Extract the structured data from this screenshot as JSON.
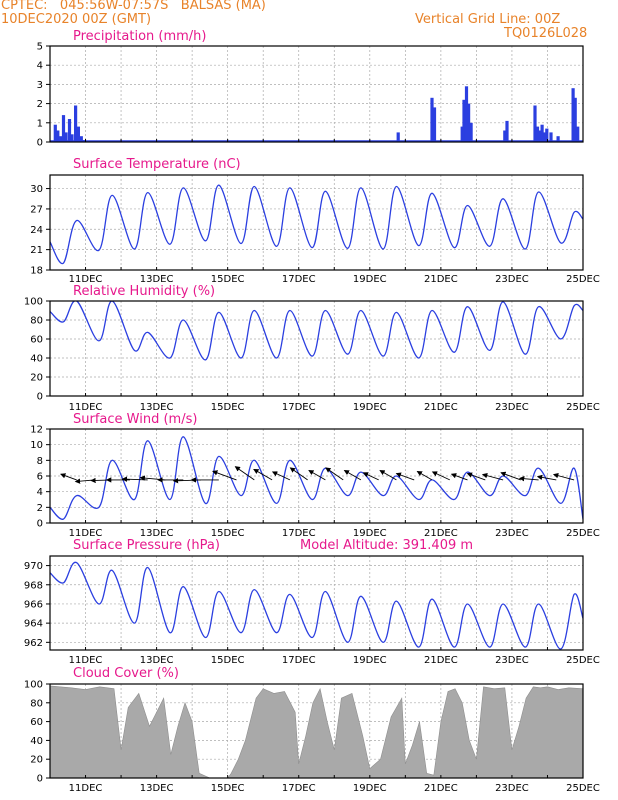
{
  "header": {
    "line1_left": "CPTEC:   045:56W-07:57S   BALSAS (MA)",
    "line2_left": "10DEC2020 00Z (GMT)",
    "line1_right": "Vertical Grid Line: 00Z",
    "line2_right": "TQ0126L028"
  },
  "colors": {
    "header": "#e8832a",
    "panel_title": "#e6198c",
    "series": "#2b3fe0",
    "cloud": "#a9a9a9",
    "grid": "#aaaaaa"
  },
  "x_axis": {
    "start": "10DEC2020 00Z",
    "end": "25DEC2020 00Z",
    "grid": "daily 00Z vertical lines",
    "tick_labels": [
      "11DEC",
      "13DEC",
      "15DEC",
      "17DEC",
      "19DEC",
      "21DEC",
      "23DEC",
      "25DEC"
    ],
    "tick_days": [
      11,
      13,
      15,
      17,
      19,
      21,
      23,
      25
    ]
  },
  "chart_data": [
    {
      "type": "bar",
      "title": "Precipitation (mm/h)",
      "ylim": [
        0,
        5
      ],
      "yticks": [
        "0",
        "1",
        "2",
        "3",
        "4",
        "5"
      ],
      "color": "#2b3fe0",
      "events": [
        {
          "day": 10.15,
          "value": 0.9
        },
        {
          "day": 10.22,
          "value": 0.6
        },
        {
          "day": 10.3,
          "value": 0.3
        },
        {
          "day": 10.38,
          "value": 1.4
        },
        {
          "day": 10.45,
          "value": 0.5
        },
        {
          "day": 10.55,
          "value": 1.2
        },
        {
          "day": 10.62,
          "value": 0.4
        },
        {
          "day": 10.72,
          "value": 1.9
        },
        {
          "day": 10.8,
          "value": 0.8
        },
        {
          "day": 10.88,
          "value": 0.3
        },
        {
          "day": 10.95,
          "value": 0.1
        },
        {
          "day": 19.8,
          "value": 0.5
        },
        {
          "day": 20.75,
          "value": 2.3
        },
        {
          "day": 20.82,
          "value": 1.8
        },
        {
          "day": 21.6,
          "value": 0.8
        },
        {
          "day": 21.65,
          "value": 2.2
        },
        {
          "day": 21.72,
          "value": 2.9
        },
        {
          "day": 21.78,
          "value": 2.0
        },
        {
          "day": 21.85,
          "value": 1.0
        },
        {
          "day": 22.8,
          "value": 0.6
        },
        {
          "day": 22.86,
          "value": 1.1
        },
        {
          "day": 23.65,
          "value": 1.9
        },
        {
          "day": 23.72,
          "value": 0.8
        },
        {
          "day": 23.78,
          "value": 0.6
        },
        {
          "day": 23.85,
          "value": 0.9
        },
        {
          "day": 23.92,
          "value": 0.5
        },
        {
          "day": 23.98,
          "value": 0.7
        },
        {
          "day": 24.1,
          "value": 0.5
        },
        {
          "day": 24.3,
          "value": 0.3
        },
        {
          "day": 24.72,
          "value": 2.8
        },
        {
          "day": 24.78,
          "value": 2.3
        },
        {
          "day": 24.85,
          "value": 0.8
        }
      ]
    },
    {
      "type": "line",
      "title": "Surface Temperature (nC)",
      "ylim": [
        18,
        32
      ],
      "yticks": [
        "18",
        "21",
        "24",
        "27",
        "30"
      ],
      "color": "#2b3fe0",
      "daily_min": [
        19.0,
        20.9,
        21.1,
        21.8,
        22.3,
        21.9,
        21.5,
        21.3,
        21.2,
        21.1,
        21.6,
        21.3,
        21.5,
        21.1,
        22.0
      ],
      "daily_max": [
        25.3,
        29.0,
        29.4,
        30.1,
        30.5,
        30.3,
        30.1,
        29.6,
        30.1,
        30.3,
        29.3,
        27.5,
        28.5,
        29.5,
        26.5
      ],
      "end_value": 25.5
    },
    {
      "type": "line",
      "title": "Relative Humidity (%)",
      "ylim": [
        0,
        100
      ],
      "yticks": [
        "0",
        "20",
        "40",
        "60",
        "80",
        "100"
      ],
      "color": "#2b3fe0",
      "daily_min": [
        78,
        58,
        48,
        40,
        38,
        40,
        40,
        42,
        44,
        42,
        40,
        46,
        48,
        44,
        60
      ],
      "daily_max": [
        100,
        100,
        67,
        80,
        88,
        90,
        90,
        90,
        90,
        88,
        90,
        94,
        99,
        94,
        95
      ],
      "end_value": 90
    },
    {
      "type": "line",
      "title": "Surface Wind (m/s)",
      "ylim": [
        0,
        12
      ],
      "yticks": [
        "0",
        "2",
        "4",
        "6",
        "8",
        "10",
        "12"
      ],
      "color": "#2b3fe0",
      "daily_min": [
        0.5,
        2.0,
        3.0,
        3.0,
        2.5,
        3.5,
        2.5,
        3.0,
        3.5,
        3.5,
        3.0,
        3.0,
        3.5,
        3.5,
        2.5
      ],
      "daily_max": [
        3.5,
        8.0,
        10.5,
        11.0,
        8.5,
        8.0,
        8.0,
        7.0,
        6.5,
        6.0,
        5.5,
        6.5,
        6.0,
        7.0,
        7.0
      ],
      "end_value": 0.5,
      "wind_barbs_speed": [
        4,
        4.5,
        5,
        5.5,
        6,
        6,
        6,
        6.5,
        6.5,
        6,
        5.5,
        5,
        4.5,
        5,
        4.5,
        5,
        4.5,
        4,
        4.5,
        4.5,
        4,
        4.5,
        4,
        4.5,
        5,
        5,
        4.5,
        4.5,
        5
      ],
      "wind_barbs_angle_deg": [
        200,
        175,
        178,
        180,
        182,
        185,
        180,
        178,
        180,
        200,
        215,
        210,
        205,
        215,
        210,
        215,
        210,
        205,
        210,
        200,
        210,
        205,
        200,
        200,
        195,
        200,
        185,
        190,
        195
      ]
    },
    {
      "type": "line",
      "title": "Surface Pressure (hPa)",
      "subtitle": "Model Altitude: 391.409 m",
      "ylim": [
        961.2,
        971
      ],
      "yticks": [
        "962",
        "964",
        "966",
        "968",
        "970"
      ],
      "color": "#2b3fe0",
      "daily_min": [
        968.2,
        966.0,
        964.0,
        963.0,
        962.5,
        963.0,
        963.0,
        962.5,
        962.0,
        962.0,
        961.5,
        961.5,
        961.5,
        961.5,
        961.3
      ],
      "daily_max": [
        970.3,
        969.5,
        969.8,
        967.8,
        967.3,
        967.5,
        967.0,
        967.3,
        966.8,
        966.3,
        966.5,
        966.0,
        966.0,
        966.0,
        967.0
      ],
      "end_value": 964.5
    },
    {
      "type": "area",
      "title": "Cloud Cover (%)",
      "ylim": [
        0,
        100
      ],
      "yticks": [
        "0",
        "20",
        "40",
        "60",
        "80",
        "100"
      ],
      "color": "#a9a9a9",
      "x": [
        10.0,
        10.6,
        11.0,
        11.4,
        11.8,
        12.0,
        12.2,
        12.5,
        12.8,
        13.0,
        13.2,
        13.4,
        13.6,
        13.8,
        14.0,
        14.2,
        14.5,
        14.8,
        15.0,
        15.1,
        15.3,
        15.5,
        15.8,
        16.0,
        16.3,
        16.6,
        16.9,
        17.0,
        17.2,
        17.4,
        17.6,
        17.8,
        18.0,
        18.2,
        18.5,
        18.8,
        19.0,
        19.3,
        19.6,
        19.9,
        20.0,
        20.2,
        20.4,
        20.6,
        20.8,
        21.0,
        21.2,
        21.4,
        21.6,
        21.8,
        22.0,
        22.2,
        22.5,
        22.8,
        23.0,
        23.2,
        23.4,
        23.6,
        23.8,
        24.0,
        24.3,
        24.6,
        25.0
      ],
      "y": [
        98,
        96,
        94,
        97,
        95,
        30,
        75,
        90,
        55,
        70,
        85,
        25,
        55,
        80,
        60,
        5,
        0,
        0,
        0,
        5,
        20,
        40,
        85,
        95,
        90,
        92,
        70,
        15,
        45,
        80,
        95,
        60,
        30,
        85,
        90,
        45,
        10,
        20,
        65,
        85,
        15,
        35,
        60,
        5,
        3,
        60,
        92,
        95,
        80,
        40,
        20,
        97,
        95,
        96,
        30,
        55,
        85,
        97,
        96,
        97,
        94,
        96,
        95
      ]
    }
  ]
}
